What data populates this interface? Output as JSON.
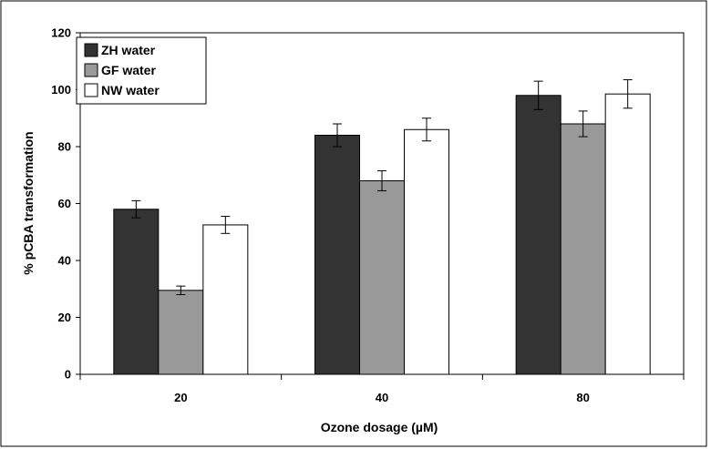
{
  "chart_data": {
    "type": "bar",
    "title": "",
    "xlabel": "Ozone dosage (µM)",
    "ylabel": "% pCBA transformation",
    "categories": [
      "20",
      "40",
      "80"
    ],
    "ylim": [
      0,
      120
    ],
    "yticks": [
      0,
      20,
      40,
      60,
      80,
      100,
      120
    ],
    "series": [
      {
        "name": "ZH water",
        "color": "#333333",
        "values": [
          58,
          84,
          98
        ],
        "errors": [
          3,
          4,
          5
        ]
      },
      {
        "name": "GF water",
        "color": "#999999",
        "values": [
          29.5,
          68,
          88
        ],
        "errors": [
          1.5,
          3.5,
          4.5
        ]
      },
      {
        "name": "NW water",
        "color": "#ffffff",
        "values": [
          52.5,
          86,
          98.5
        ],
        "errors": [
          3,
          4,
          5
        ]
      }
    ],
    "legend": "top-left",
    "grid": false,
    "error_bars": true
  }
}
